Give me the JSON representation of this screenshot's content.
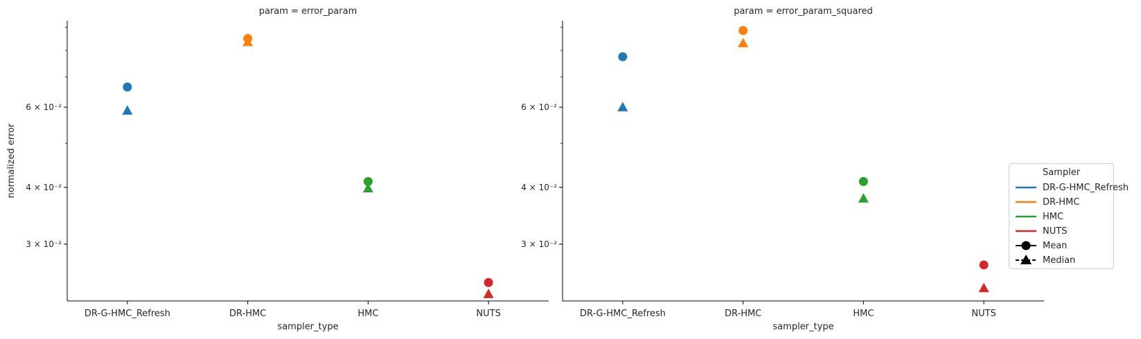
{
  "chart_data": [
    {
      "type": "scatter",
      "title": "param = error_param",
      "xlabel": "sampler_type",
      "ylabel": "normalized error",
      "yscale": "log",
      "ylim": [
        0.0225,
        0.093
      ],
      "categories": [
        "DR-G-HMC_Refresh",
        "DR-HMC",
        "HMC",
        "NUTS"
      ],
      "yticks": [
        {
          "value": 0.03,
          "label": "3 × 10⁻²"
        },
        {
          "value": 0.04,
          "label": "4 × 10⁻²"
        },
        {
          "value": 0.06,
          "label": "6 × 10⁻²"
        }
      ],
      "series": [
        {
          "name": "Mean",
          "marker": "circle",
          "values": [
            0.0665,
            0.085,
            0.0412,
            0.0247
          ]
        },
        {
          "name": "Median",
          "marker": "triangle",
          "values": [
            0.059,
            0.0835,
            0.0398,
            0.0233
          ]
        }
      ],
      "point_colors": [
        "#1f77b4",
        "#ff7f0e",
        "#2ca02c",
        "#d62728"
      ]
    },
    {
      "type": "scatter",
      "title": "param = error_param_squared",
      "xlabel": "sampler_type",
      "ylabel": "",
      "yscale": "log",
      "ylim": [
        0.0225,
        0.093
      ],
      "categories": [
        "DR-G-HMC_Refresh",
        "DR-HMC",
        "HMC",
        "NUTS"
      ],
      "yticks": [
        {
          "value": 0.03,
          "label": "3 × 10⁻²"
        },
        {
          "value": 0.04,
          "label": "4 × 10⁻²"
        },
        {
          "value": 0.06,
          "label": "6 × 10⁻²"
        }
      ],
      "series": [
        {
          "name": "Mean",
          "marker": "circle",
          "values": [
            0.0775,
            0.0885,
            0.0412,
            0.027
          ]
        },
        {
          "name": "Median",
          "marker": "triangle",
          "values": [
            0.06,
            0.083,
            0.0378,
            0.024
          ]
        }
      ],
      "point_colors": [
        "#1f77b4",
        "#ff7f0e",
        "#2ca02c",
        "#d62728"
      ]
    }
  ],
  "legend": {
    "title": "Sampler",
    "items": [
      {
        "label": "DR-G-HMC_Refresh",
        "color": "#1f77b4",
        "kind": "line"
      },
      {
        "label": "DR-HMC",
        "color": "#ff7f0e",
        "kind": "line"
      },
      {
        "label": "HMC",
        "color": "#2ca02c",
        "kind": "line"
      },
      {
        "label": "NUTS",
        "color": "#d62728",
        "kind": "line"
      },
      {
        "label": "Mean",
        "color": "#000000",
        "kind": "circle"
      },
      {
        "label": "Median",
        "color": "#000000",
        "kind": "triangle"
      }
    ]
  }
}
